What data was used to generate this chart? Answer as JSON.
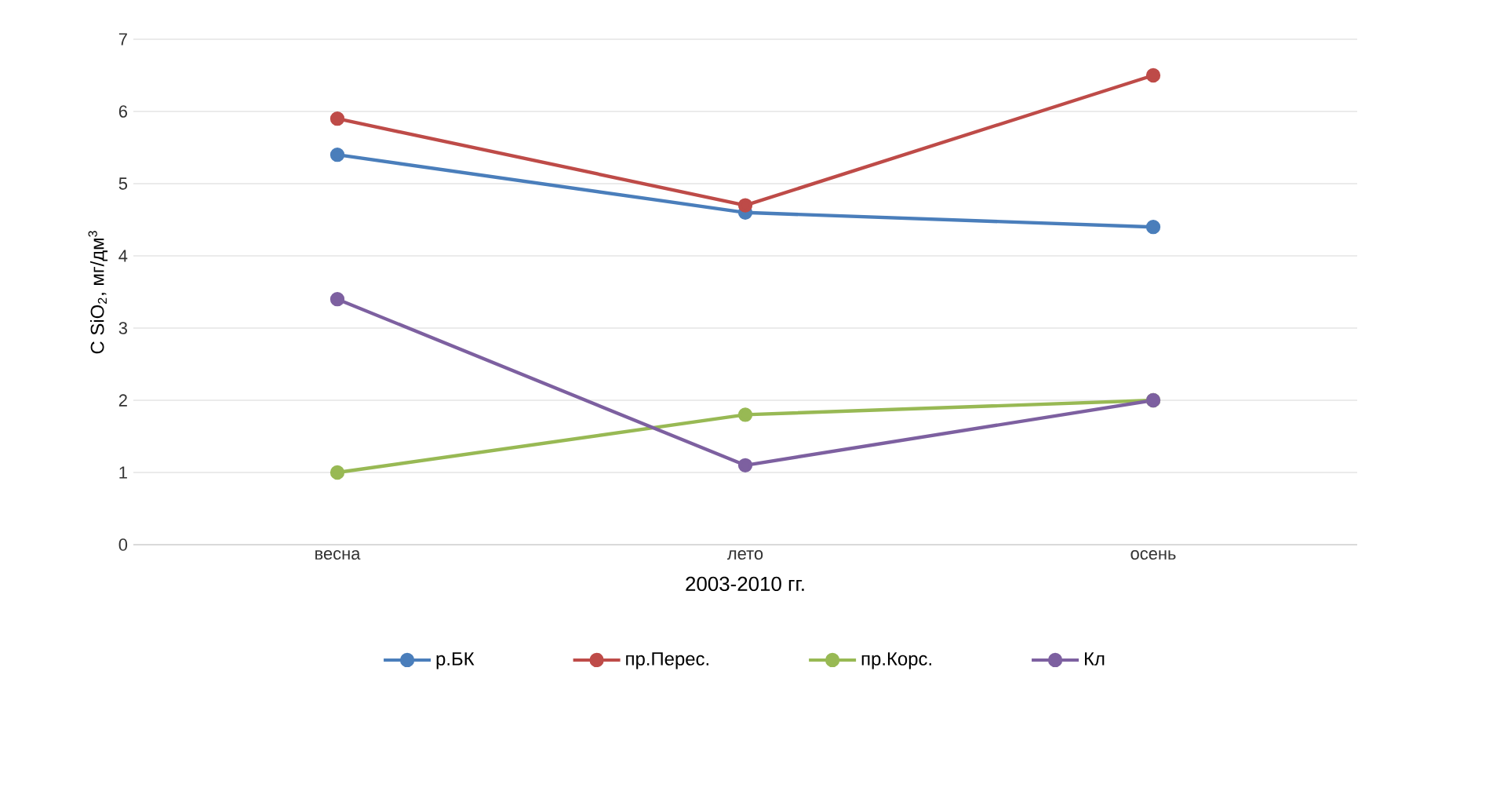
{
  "chart_data": {
    "type": "line",
    "xlabel": "2003-2010 гг.",
    "ylabel": "C SiO$_{2}$, мг/дм$^{3}$",
    "categories": [
      "весна",
      "лето",
      "осень"
    ],
    "series": [
      {
        "name": "р.БК",
        "color": "#4a7ebb",
        "values": [
          5.4,
          4.6,
          4.4
        ]
      },
      {
        "name": "пр.Перес.",
        "color": "#be4b48",
        "values": [
          5.9,
          4.7,
          6.5
        ]
      },
      {
        "name": "пр.Корс.",
        "color": "#98b954",
        "values": [
          1.0,
          1.8,
          2.0
        ]
      },
      {
        "name": "Кл",
        "color": "#7d60a0",
        "values": [
          3.4,
          1.1,
          2.0
        ]
      }
    ],
    "ylim": [
      0,
      7
    ],
    "yticks": [
      0,
      1,
      2,
      3,
      4,
      5,
      6,
      7
    ],
    "grid": "y",
    "legend": "bottom",
    "marker": "circle",
    "line_style": "solid"
  }
}
